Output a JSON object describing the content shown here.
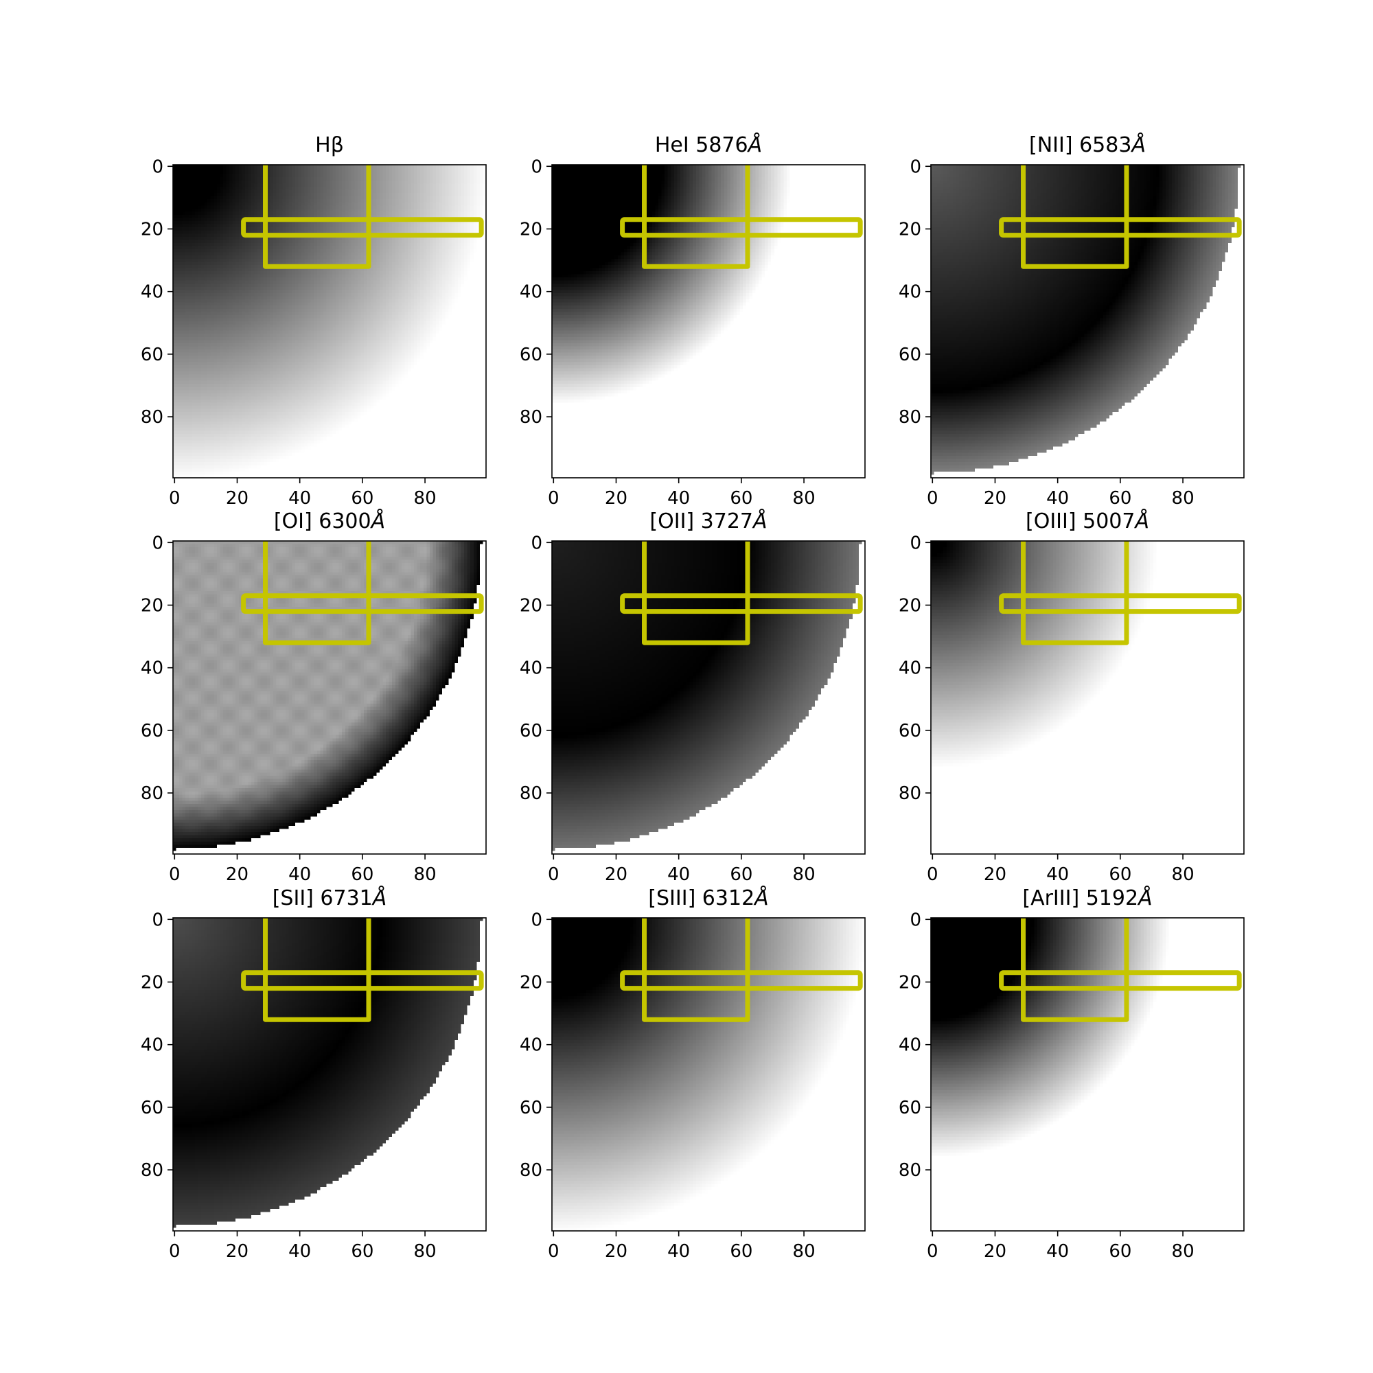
{
  "chart_data": {
    "type": "heatmap",
    "layout": "3x3 grid of image panels",
    "colormap": "gray",
    "axes": {
      "xlim": [
        -0.5,
        99.5
      ],
      "ylim": [
        99.5,
        -0.5
      ],
      "y_inverted": true,
      "xticks": [
        0,
        20,
        40,
        60,
        80
      ],
      "yticks": [
        0,
        20,
        40,
        60,
        80
      ]
    },
    "overlay": {
      "color": "#c5c500",
      "vertical_aperture": {
        "x": [
          29,
          62
        ],
        "y": [
          0,
          32
        ]
      },
      "horizontal_aperture": {
        "x": [
          22,
          98
        ],
        "y": [
          17,
          22
        ]
      }
    },
    "panels": [
      {
        "title": "Hβ",
        "title_base": "Hβ",
        "title_unit": "",
        "model": "smooth",
        "dark_center": [
          0,
          0
        ],
        "edge_radius": 100,
        "fade_start": 15,
        "fade_end": 100,
        "outside": "#ffffff"
      },
      {
        "title": "HeI 5876Å",
        "title_base": "HeI 5876",
        "title_unit": "Å",
        "model": "smooth",
        "dark_center": [
          0,
          0
        ],
        "edge_radius": 100,
        "fade_start": 35,
        "fade_end": 76,
        "outside": "#ffffff"
      },
      {
        "title": "[NII] 6583Å",
        "title_base": "[NII] 6583",
        "title_unit": "Å",
        "model": "ring",
        "dark_center": [
          0,
          0
        ],
        "edge_radius": 98,
        "ring_peak": 72,
        "center_level": 0.35,
        "edge_level": 0.5,
        "outside": "#ffffff"
      },
      {
        "title": "[OI] 6300Å",
        "title_base": "[OI] 6300",
        "title_unit": "Å",
        "model": "shell",
        "dark_center": [
          0,
          0
        ],
        "edge_radius": 98,
        "interior_level": 0.62,
        "edge_level": 0.0,
        "outside": "#ffffff"
      },
      {
        "title": "[OII] 3727Å",
        "title_base": "[OII] 3727",
        "title_unit": "Å",
        "model": "ring",
        "dark_center": [
          0,
          0
        ],
        "edge_radius": 98,
        "ring_peak": 62,
        "center_level": 0.12,
        "edge_level": 0.45,
        "outside": "#ffffff"
      },
      {
        "title": "[OIII] 5007Å",
        "title_base": "[OIII] 5007",
        "title_unit": "Å",
        "model": "smooth",
        "dark_center": [
          0,
          0
        ],
        "edge_radius": 100,
        "fade_start": 4,
        "fade_end": 72,
        "outside": "#ffffff"
      },
      {
        "title": "[SII] 6731Å",
        "title_base": "[SII] 6731",
        "title_unit": "Å",
        "model": "ring",
        "dark_center": [
          0,
          0
        ],
        "edge_radius": 98,
        "ring_peak": 66,
        "center_level": 0.3,
        "edge_level": 0.25,
        "outside": "#ffffff"
      },
      {
        "title": "[SIII] 6312Å",
        "title_base": "[SIII] 6312",
        "title_unit": "Å",
        "model": "smooth",
        "dark_center": [
          0,
          0
        ],
        "edge_radius": 100,
        "fade_start": 25,
        "fade_end": 100,
        "outside": "#ffffff"
      },
      {
        "title": "[ArIII] 5192Å",
        "title_base": "[ArIII] 5192",
        "title_unit": "Å",
        "model": "smooth",
        "dark_center": [
          0,
          0
        ],
        "edge_radius": 100,
        "fade_start": 32,
        "fade_end": 76,
        "outside": "#ffffff"
      }
    ]
  }
}
